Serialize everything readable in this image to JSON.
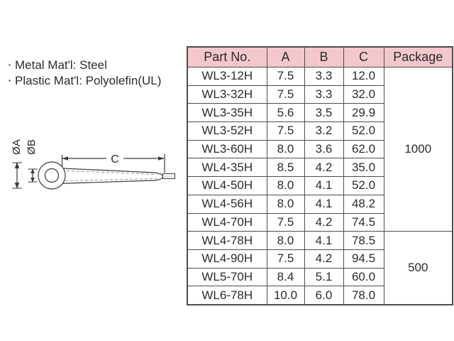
{
  "materials": {
    "bullet": "·",
    "items": [
      {
        "label": "Metal Mat'l: Steel"
      },
      {
        "label": "Plastic Mat'l: Polyolefin(UL)"
      }
    ]
  },
  "diagram": {
    "dim_a_label": "ØA",
    "dim_b_label": "ØB",
    "dim_c_label": "C"
  },
  "table": {
    "headers": [
      "Part No.",
      "A",
      "B",
      "C",
      "Package"
    ],
    "rows": [
      {
        "part": "WL3-12H",
        "a": "7.5",
        "b": "3.3",
        "c": "12.0"
      },
      {
        "part": "WL3-32H",
        "a": "7.5",
        "b": "3.3",
        "c": "32.0"
      },
      {
        "part": "WL3-35H",
        "a": "5.6",
        "b": "3.5",
        "c": "29.9"
      },
      {
        "part": "WL3-52H",
        "a": "7.5",
        "b": "3.2",
        "c": "52.0"
      },
      {
        "part": "WL3-60H",
        "a": "8.0",
        "b": "3.6",
        "c": "62.0"
      },
      {
        "part": "WL4-35H",
        "a": "8.5",
        "b": "4.2",
        "c": "35.0"
      },
      {
        "part": "WL4-50H",
        "a": "8.0",
        "b": "4.1",
        "c": "52.0"
      },
      {
        "part": "WL4-56H",
        "a": "8.0",
        "b": "4.1",
        "c": "48.2"
      },
      {
        "part": "WL4-70H",
        "a": "7.5",
        "b": "4.2",
        "c": "74.5"
      },
      {
        "part": "WL4-78H",
        "a": "8.0",
        "b": "4.1",
        "c": "78.5"
      },
      {
        "part": "WL4-90H",
        "a": "7.5",
        "b": "4.2",
        "c": "94.5"
      },
      {
        "part": "WL5-70H",
        "a": "8.4",
        "b": "5.1",
        "c": "60.0"
      },
      {
        "part": "WL6-78H",
        "a": "10.0",
        "b": "6.0",
        "c": "78.0"
      }
    ],
    "package_groups": [
      {
        "label": "1000",
        "row_span": 9
      },
      {
        "label": "500",
        "row_span": 4
      }
    ],
    "header_bg": "#f4c7cd",
    "border_color": "#4d4d4d"
  }
}
